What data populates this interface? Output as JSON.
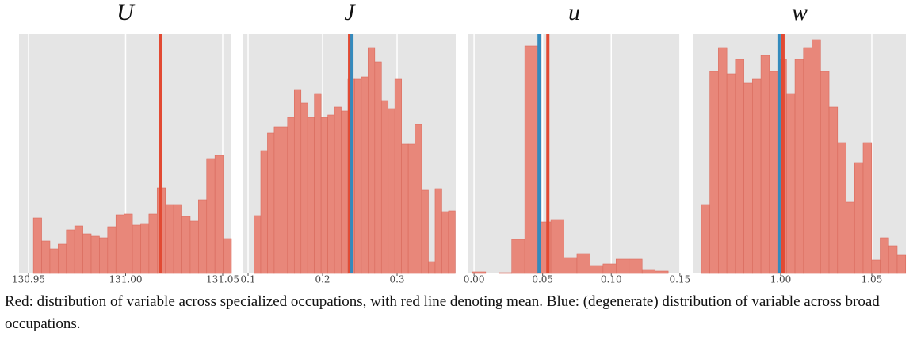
{
  "chart_data": [
    {
      "type": "histogram",
      "title": "U",
      "color": "#e8877a",
      "edge_color": "#d96a5c",
      "grid": true,
      "bins": [
        130.9525,
        130.95675,
        130.961,
        130.96525,
        130.9695,
        130.97375,
        130.978,
        130.98225,
        130.9865,
        130.99075,
        130.995,
        130.99925,
        131.0035,
        131.00775,
        131.012,
        131.01625,
        131.0205,
        131.02475,
        131.029,
        131.03325,
        131.0375,
        131.04175,
        131.046,
        131.05025,
        131.0545
      ],
      "counts": [
        70,
        41,
        31,
        37,
        55,
        60,
        50,
        47,
        45,
        59,
        74,
        75,
        61,
        63,
        75,
        108,
        87,
        87,
        72,
        66,
        93,
        145,
        149,
        44
      ],
      "xlim": [
        130.9451,
        131.0545
      ],
      "ylim": [
        0,
        302
      ],
      "xticks": [
        130.95,
        {
          "value": 131.0,
          "label": "131.00"
        },
        131.05
      ],
      "mean_lines": [
        {
          "value": 131.0178,
          "color": "#e24a33"
        }
      ]
    },
    {
      "type": "histogram",
      "title": "J",
      "color": "#e8877a",
      "edge_color": "#d96a5c",
      "grid": true,
      "bins": [
        0.108,
        0.117,
        0.126,
        0.135,
        0.144,
        0.153,
        0.162,
        0.171,
        0.18,
        0.189,
        0.198,
        0.207,
        0.216,
        0.225,
        0.234,
        0.243,
        0.252,
        0.261,
        0.27,
        0.279,
        0.288,
        0.297,
        0.306,
        0.315,
        0.324,
        0.333,
        0.342,
        0.351,
        0.36,
        0.369,
        0.378
      ],
      "counts": [
        73,
        155,
        177,
        185,
        185,
        197,
        232,
        215,
        197,
        227,
        197,
        200,
        210,
        205,
        245,
        245,
        248,
        285,
        267,
        218,
        208,
        245,
        163,
        163,
        188,
        105,
        15,
        107,
        78,
        79
      ],
      "xlim": [
        0.0936,
        0.3787
      ],
      "ylim": [
        0,
        302
      ],
      "xticks": [
        0.1,
        0.2,
        0.3
      ],
      "mean_lines": [
        {
          "value": 0.2362,
          "color": "#e24a33"
        },
        {
          "value": 0.2394,
          "color": "#348abd"
        }
      ]
    },
    {
      "type": "histogram",
      "title": "u",
      "color": "#e8877a",
      "edge_color": "#d96a5c",
      "grid": true,
      "bins": [
        -0.001,
        0.0085,
        0.018,
        0.0275,
        0.037,
        0.0465,
        0.056,
        0.0655,
        0.075,
        0.0845,
        0.094,
        0.1035,
        0.113,
        0.1225,
        0.132,
        0.1415
      ],
      "counts": [
        2,
        0,
        1,
        43,
        287,
        65,
        68,
        20,
        25,
        10,
        12,
        18,
        18,
        5,
        3
      ],
      "xlim": [
        -0.0041,
        0.1501
      ],
      "ylim": [
        0,
        302
      ],
      "xticks": [
        {
          "value": 0,
          "label": "0.00"
        },
        0.05,
        {
          "value": 0.1,
          "label": "0.10"
        },
        0.15
      ],
      "mean_lines": [
        {
          "value": 0.0474,
          "color": "#348abd"
        },
        {
          "value": 0.0538,
          "color": "#e24a33"
        }
      ]
    },
    {
      "type": "histogram",
      "title": "w",
      "color": "#e8877a",
      "edge_color": "#d96a5c",
      "grid": true,
      "bins": [
        0.9565,
        0.96117,
        0.96584,
        0.97051,
        0.97518,
        0.97985,
        0.98452,
        0.98919,
        0.99386,
        0.99853,
        1.0032,
        1.00787,
        1.01254,
        1.01721,
        1.02188,
        1.02655,
        1.03122,
        1.03589,
        1.04056,
        1.04523,
        1.0499,
        1.05457,
        1.05924,
        1.06391,
        1.06858
      ],
      "counts": [
        87,
        255,
        285,
        252,
        270,
        240,
        245,
        275,
        255,
        270,
        227,
        270,
        285,
        295,
        255,
        210,
        165,
        90,
        140,
        165,
        17,
        45,
        35,
        23
      ],
      "xlim": [
        0.9522,
        1.0687
      ],
      "ylim": [
        0,
        302
      ],
      "xticks": [
        {
          "value": 1.0,
          "label": "1.00"
        },
        1.05
      ],
      "mean_lines": [
        {
          "value": 0.9991,
          "color": "#348abd"
        },
        {
          "value": 1.0013,
          "color": "#e24a33"
        }
      ]
    }
  ],
  "caption": "Red: distribution of variable across specialized occupations, with red line denoting mean. Blue: (degenerate) distribution of variable across broad occupations."
}
